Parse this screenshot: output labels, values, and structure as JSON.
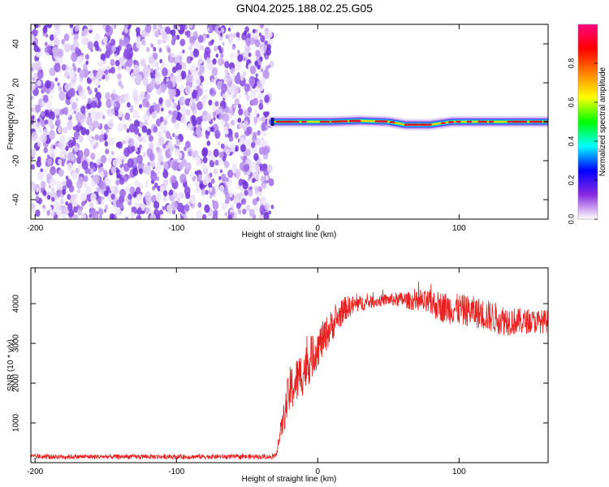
{
  "title": "GN04.2025.188.02.25.G05",
  "chart_data": [
    {
      "type": "heatmap",
      "title": "GN04.2025.188.02.25.G05",
      "xlabel": "Height of straight line (km)",
      "ylabel": "Frequency (Hz)",
      "xlim": [
        -203,
        163
      ],
      "ylim": [
        -50,
        50
      ],
      "x_ticks": [
        -200,
        -100,
        0,
        100
      ],
      "x_tick_labels": [
        "-200",
        "-100",
        "0",
        "100"
      ],
      "y_ticks": [
        -40,
        -20,
        0,
        20,
        40
      ],
      "y_tick_labels": [
        "-40",
        "-20",
        "0",
        "20",
        "40"
      ],
      "noise_region_x": [
        -203,
        -32
      ],
      "signal_start_x": -32,
      "signal_line_frequency": 0,
      "signal_track": [
        {
          "x": -32,
          "f": 0
        },
        {
          "x": 10,
          "f": 0
        },
        {
          "x": 30,
          "f": 0.5
        },
        {
          "x": 50,
          "f": 0
        },
        {
          "x": 62,
          "f": -1.5
        },
        {
          "x": 80,
          "f": -1.5
        },
        {
          "x": 95,
          "f": 0
        },
        {
          "x": 163,
          "f": 0
        }
      ],
      "colorbar": {
        "label": "Normalized spectral amplitude",
        "range": [
          0,
          1
        ],
        "ticks": [
          0.0,
          0.2,
          0.4,
          0.6,
          0.8
        ],
        "tick_labels": [
          "0.0",
          "0.2",
          "0.4",
          "0.6",
          "0.8"
        ],
        "colormap": [
          "#ffffff",
          "#8a2be2",
          "#0000ff",
          "#00ffff",
          "#00ff00",
          "#ffff00",
          "#ff8000",
          "#ff0000",
          "#ff0080"
        ]
      },
      "colors": {
        "noise": "#7b2fe0",
        "signal_core": "#e8102a",
        "signal_edge": "#2040ff"
      },
      "grid": false
    },
    {
      "type": "line",
      "xlabel": "Height of straight line (km)",
      "ylabel": "SNR (10 * v/v)",
      "xlim": [
        -203,
        163
      ],
      "ylim": [
        0,
        4900
      ],
      "x_ticks": [
        -200,
        -100,
        0,
        100
      ],
      "x_tick_labels": [
        "-200",
        "-100",
        "0",
        "100"
      ],
      "y_ticks": [
        1000,
        2000,
        3000,
        4000
      ],
      "y_tick_labels": [
        "1000",
        "2000",
        "3000",
        "4000"
      ],
      "color": "#e8201f",
      "grid": false,
      "series": [
        {
          "x": [
            -203,
            -30,
            -20,
            -10,
            0,
            10,
            20,
            30,
            40,
            50,
            60,
            70,
            80,
            90,
            100,
            110,
            120,
            130,
            140,
            150,
            163
          ],
          "y": [
            150,
            150,
            1800,
            2300,
            2900,
            3450,
            3900,
            4000,
            4050,
            4100,
            4100,
            4050,
            4000,
            3900,
            3850,
            3800,
            3700,
            3600,
            3550,
            3550,
            3550
          ],
          "spread": [
            60,
            60,
            600,
            600,
            500,
            400,
            300,
            200,
            150,
            150,
            200,
            250,
            350,
            400,
            400,
            400,
            400,
            400,
            350,
            300,
            300
          ]
        }
      ]
    }
  ]
}
